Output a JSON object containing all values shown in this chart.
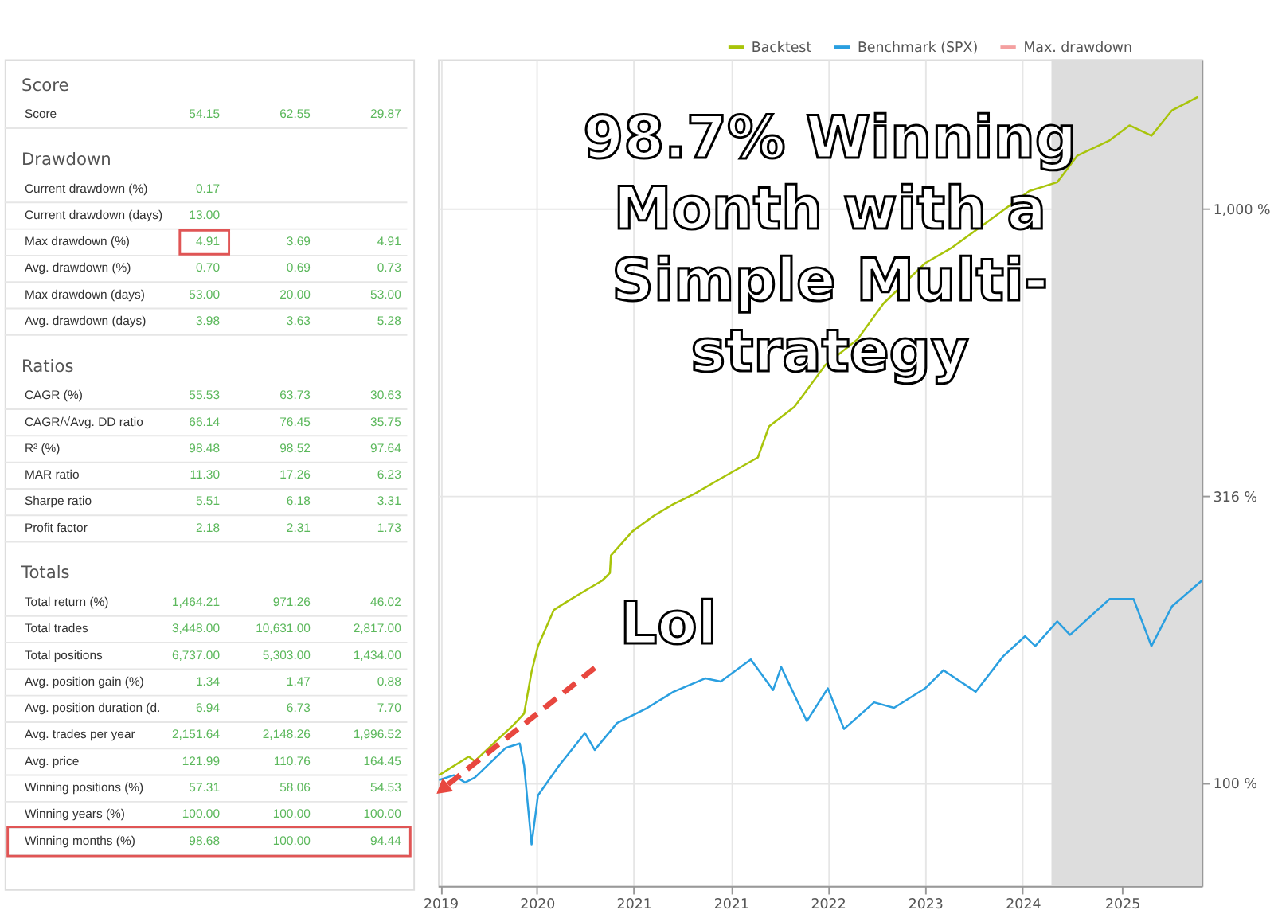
{
  "chart_data": [
    {
      "type": "other",
      "categories": [
        "Score",
        "Score",
        "Drawdown",
        "Current drawdown (%)",
        "Current drawdown (days)",
        "Max drawdown (%)",
        "Avg. drawdown (%)",
        "Max drawdown (days)",
        "Avg. drawdown (days)",
        "Ratios",
        "CAGR (%)",
        "CAGR/√Avg. DD ratio",
        "R² (%)",
        "MAR ratio",
        "Sharpe ratio",
        "Profit factor",
        "Totals",
        "Total return (%)",
        "Total trades",
        "Total positions",
        "Avg. position gain (%)",
        "Avg. position duration (d.",
        "Avg. trades per year",
        "Avg. price",
        "Winning positions (%)",
        "Winning years (%)",
        "Winning months (%)"
      ],
      "series": [
        {
          "color": "#5cb85c",
          "values": [
            null,
            54.15,
            null,
            0.17,
            13.0,
            4.91,
            0.7,
            53.0,
            3.98,
            null,
            55.53,
            66.14,
            98.48,
            11.3,
            5.51,
            2.18,
            null,
            1464.21,
            3448.0,
            6737.0,
            1.34,
            6.94,
            2151.64,
            121.99,
            57.31,
            100.0,
            98.68
          ],
          "value_labels": [
            null,
            "54.15",
            null,
            "0.17",
            "13.00",
            "4.91",
            "0.70",
            "53.00",
            "3.98",
            null,
            "55.53",
            "66.14",
            "98.48",
            "11.30",
            "5.51",
            "2.18",
            null,
            "1,464.21",
            "3,448.00",
            "6,737.00",
            "1.34",
            "6.94",
            "2,151.64",
            "121.99",
            "57.31",
            "100.00",
            "98.68"
          ]
        },
        {
          "color": "#5cb85c",
          "values": [
            null,
            62.55,
            null,
            null,
            null,
            3.69,
            0.69,
            20.0,
            3.63,
            null,
            63.73,
            76.45,
            98.52,
            17.26,
            6.18,
            2.31,
            null,
            971.26,
            10631.0,
            5303.0,
            1.47,
            6.73,
            2148.26,
            110.76,
            58.06,
            100.0,
            100.0
          ],
          "value_labels": [
            null,
            "62.55",
            null,
            null,
            null,
            "3.69",
            "0.69",
            "20.00",
            "3.63",
            null,
            "63.73",
            "76.45",
            "98.52",
            "17.26",
            "6.18",
            "2.31",
            null,
            "971.26",
            "10,631.00",
            "5,303.00",
            "1.47",
            "6.73",
            "2,148.26",
            "110.76",
            "58.06",
            "100.00",
            "100.00"
          ]
        },
        {
          "color": "#5cb85c",
          "values": [
            null,
            29.87,
            null,
            null,
            null,
            4.91,
            0.73,
            53.0,
            5.28,
            null,
            30.63,
            35.75,
            97.64,
            6.23,
            3.31,
            1.73,
            null,
            46.02,
            2817.0,
            1434.0,
            0.88,
            7.7,
            1996.52,
            164.45,
            54.53,
            100.0,
            94.44
          ],
          "value_labels": [
            null,
            "29.87",
            null,
            null,
            null,
            "4.91",
            "0.73",
            "53.00",
            "5.28",
            null,
            "30.63",
            "35.75",
            "97.64",
            "6.23",
            "3.31",
            "1.73",
            null,
            "46.02",
            "2,817.00",
            "1,434.00",
            "0.88",
            "7.70",
            "1,996.52",
            "164.45",
            "54.53",
            "100.00",
            "94.44"
          ]
        }
      ]
    },
    {
      "type": "line",
      "log": "y",
      "grid": true,
      "legend": "top",
      "xlim": [
        "2019-06-20",
        "2025-08-28"
      ],
      "xticks": [
        {
          "value": "2019-06-27",
          "label": "2019"
        },
        {
          "value": "2020-04-08",
          "label": "2020"
        },
        {
          "value": "2021-01-19",
          "label": "2021"
        },
        {
          "value": "2021-11-03",
          "label": "2021"
        },
        {
          "value": "2022-08-17",
          "label": "2022"
        },
        {
          "value": "2023-06-01",
          "label": "2023"
        },
        {
          "value": "2024-03-16",
          "label": "2024"
        },
        {
          "value": "2025-01-04",
          "label": "2025"
        }
      ],
      "ylim": [
        66,
        1825
      ],
      "yticks": [
        {
          "value": 100,
          "label": "100 %"
        },
        {
          "value": 316,
          "label": "316 %"
        },
        {
          "value": 1000,
          "label": "1,000 %"
        }
      ],
      "bands": [
        {
          "axis": "x",
          "from": "2024-06-09",
          "to": "2025-08-28",
          "color": "#dddddd"
        }
      ],
      "annotations": [
        "98.7% Winning\nMonth with a\nSimple Multi-\nstrategy",
        "Lol"
      ],
      "series": [
        {
          "name": "Backtest",
          "color": "#a8c40a",
          "x": [
            "2019-06-23",
            "2019-09-19",
            "2019-10-07",
            "2019-12-08",
            "2020-01-29",
            "2020-03-01",
            "2020-03-23",
            "2020-04-11",
            "2020-05-28",
            "2020-07-01",
            "2020-08-28",
            "2020-10-18",
            "2020-11-10",
            "2020-11-13",
            "2021-01-15",
            "2021-03-20",
            "2021-05-17",
            "2021-07-19",
            "2021-10-04",
            "2022-01-22",
            "2022-02-24",
            "2022-05-10",
            "2022-08-10",
            "2022-11-13",
            "2023-01-29",
            "2023-06-01",
            "2023-08-17",
            "2023-12-23",
            "2024-04-04",
            "2024-06-26",
            "2024-08-24",
            "2024-11-28",
            "2025-01-26",
            "2025-04-01",
            "2025-06-01",
            "2025-08-17"
          ],
          "values": [
            103,
            111,
            109,
            118,
            126,
            132,
            156,
            173,
            200,
            206,
            216,
            225,
            232,
            249,
            274,
            292,
            306,
            319,
            339,
            369,
            418,
            452,
            535,
            593,
            685,
            805,
            855,
            970,
            1075,
            1114,
            1239,
            1318,
            1400,
            1343,
            1487,
            1570
          ]
        },
        {
          "name": "Benchmark (SPX)",
          "color": "#2a9fe0",
          "x": [
            "2019-06-23",
            "2019-08-06",
            "2019-09-08",
            "2019-10-07",
            "2020-01-07",
            "2020-02-17",
            "2020-03-01",
            "2020-03-23",
            "2020-04-11",
            "2020-06-12",
            "2020-08-28",
            "2020-09-26",
            "2020-12-01",
            "2021-03-01",
            "2021-05-17",
            "2021-08-20",
            "2021-10-04",
            "2022-01-01",
            "2022-03-08",
            "2022-04-01",
            "2022-06-16",
            "2022-08-17",
            "2022-10-04",
            "2023-01-01",
            "2023-03-01",
            "2023-06-01",
            "2023-07-25",
            "2023-10-29",
            "2024-01-18",
            "2024-03-23",
            "2024-04-22",
            "2024-06-26",
            "2024-08-03",
            "2024-11-28",
            "2025-02-07",
            "2025-04-01",
            "2025-06-01",
            "2025-08-28"
          ],
          "values": [
            101,
            103,
            100,
            102,
            115,
            117,
            107,
            78,
            95,
            107,
            122,
            114,
            127,
            135,
            144,
            152,
            150,
            164,
            145,
            159,
            128,
            146,
            124,
            138,
            135,
            146,
            157,
            144,
            166,
            180,
            173,
            191,
            181,
            209,
            209,
            173,
            203,
            225
          ]
        },
        {
          "name": "Max. drawdown",
          "color": "#f4a0a0"
        }
      ]
    }
  ]
}
